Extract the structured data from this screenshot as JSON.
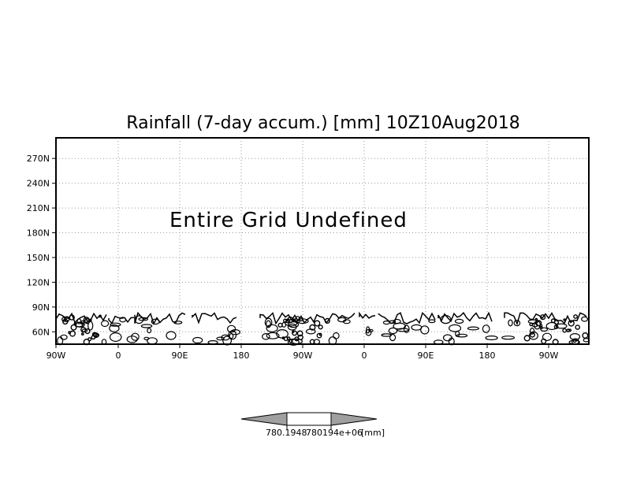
{
  "chart_data": {
    "type": "heatmap",
    "title": "Rainfall (7-day accum.) [mm] 10Z10Aug2018",
    "annotation": "Entire Grid Undefined",
    "x_ticks": [
      "90W",
      "0",
      "90E",
      "180",
      "90W",
      "0",
      "90E",
      "180",
      "90W"
    ],
    "y_ticks": [
      "60N",
      "90N",
      "120N",
      "150N",
      "180N",
      "210N",
      "240N",
      "270N"
    ],
    "ylim": [
      45,
      295
    ],
    "grid": "dotted",
    "colorbar": {
      "labels": [
        "780.1948",
        "780194e+06",
        "[mm]"
      ],
      "colors": {
        "left": "#a0a0a0",
        "center": "#ffffff",
        "right": "#a0a0a0"
      }
    },
    "colors": {
      "coastline": "#000000",
      "grid": "#9a9a9a",
      "frame": "#000000"
    }
  }
}
